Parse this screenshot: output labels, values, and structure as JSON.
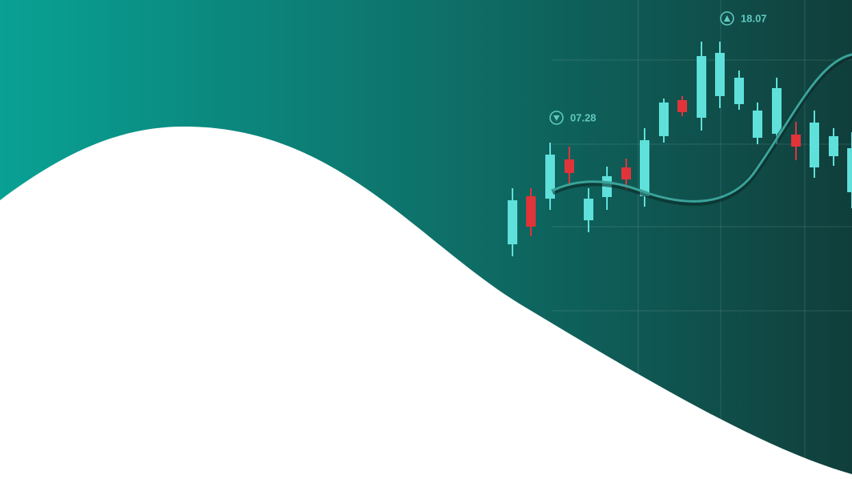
{
  "markers": [
    "07.28",
    "18.07"
  ]
}
